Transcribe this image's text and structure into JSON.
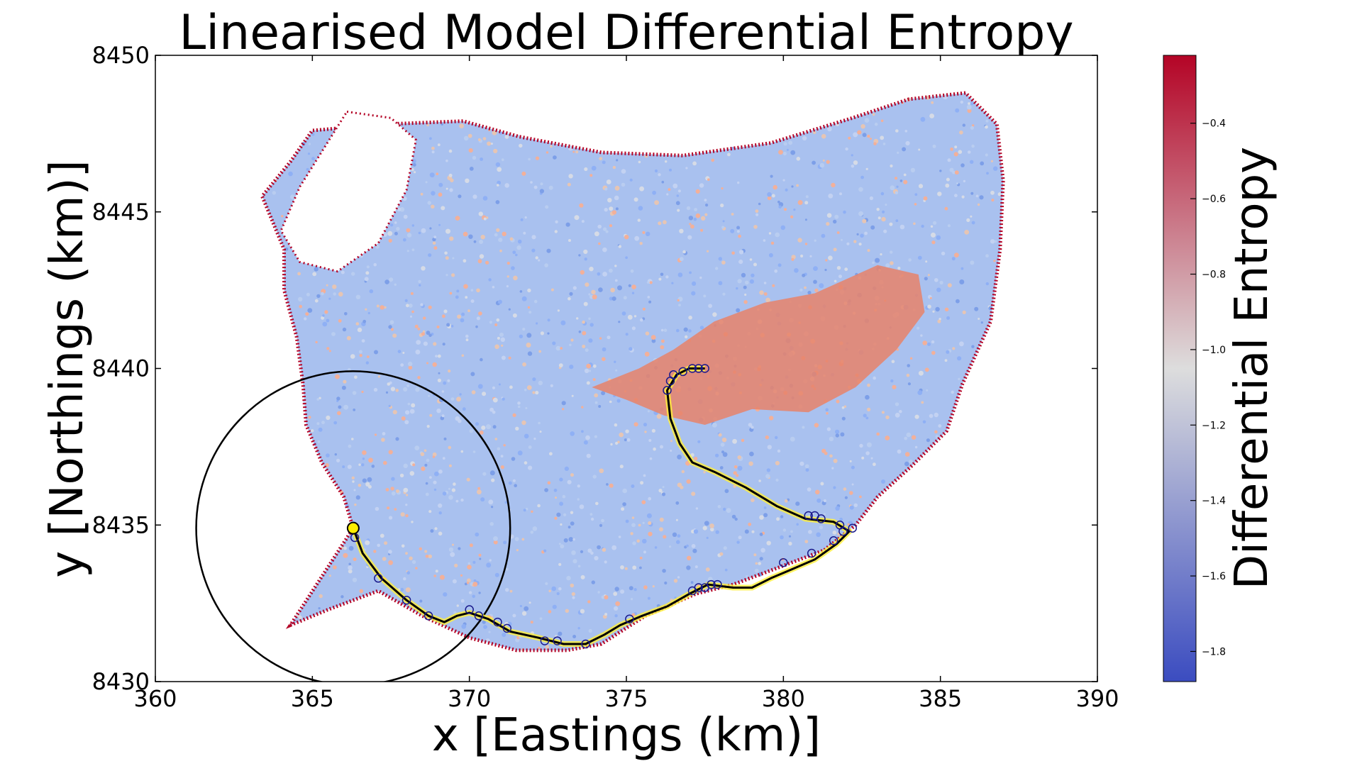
{
  "chart_data": {
    "type": "scatter",
    "title": "Linearised Model Differential Entropy",
    "xlabel": "x [Eastings (km)]",
    "ylabel": "y [Northings (km)]",
    "xlim": [
      360,
      390
    ],
    "ylim": [
      8430,
      8450
    ],
    "x_ticks": [
      "360",
      "365",
      "370",
      "375",
      "380",
      "385",
      "390"
    ],
    "y_ticks": [
      "8430",
      "8435",
      "8440",
      "8445",
      "8450"
    ],
    "grid": false,
    "colorbar": {
      "label": "Differential Entropy",
      "min": -1.88,
      "max": -0.22,
      "ticks": [
        "−0.4",
        "−0.6",
        "−0.8",
        "−1.0",
        "−1.2",
        "−1.4",
        "−1.6",
        "−1.8"
      ],
      "colormap": "coolwarm",
      "low_color": "#3b4cc0",
      "mid_color": "#dddddd",
      "high_color": "#b40426"
    },
    "region_outline": [
      [
        364.3,
        8431.8
      ],
      [
        365.5,
        8432.3
      ],
      [
        367.1,
        8432.9
      ],
      [
        368.5,
        8432.1
      ],
      [
        370.0,
        8431.4
      ],
      [
        371.5,
        8431.0
      ],
      [
        373.1,
        8431.0
      ],
      [
        374.2,
        8431.2
      ],
      [
        375.6,
        8432.1
      ],
      [
        377.2,
        8432.8
      ],
      [
        378.4,
        8433.1
      ],
      [
        380.0,
        8433.7
      ],
      [
        381.3,
        8434.2
      ],
      [
        382.3,
        8435.0
      ],
      [
        383.0,
        8435.9
      ],
      [
        384.1,
        8436.9
      ],
      [
        385.2,
        8438.0
      ],
      [
        385.7,
        8439.5
      ],
      [
        386.6,
        8441.5
      ],
      [
        386.9,
        8443.8
      ],
      [
        387.0,
        8446.0
      ],
      [
        386.8,
        8447.8
      ],
      [
        385.8,
        8448.8
      ],
      [
        384.0,
        8448.6
      ],
      [
        382.2,
        8448.0
      ],
      [
        379.6,
        8447.2
      ],
      [
        376.8,
        8446.8
      ],
      [
        374.2,
        8446.9
      ],
      [
        371.6,
        8447.4
      ],
      [
        369.8,
        8447.9
      ],
      [
        367.3,
        8447.8
      ],
      [
        365.0,
        8447.6
      ],
      [
        364.3,
        8446.6
      ],
      [
        363.4,
        8445.5
      ],
      [
        364.1,
        8443.8
      ],
      [
        364.1,
        8442.5
      ],
      [
        364.5,
        8441.0
      ],
      [
        364.7,
        8439.5
      ],
      [
        364.8,
        8438.2
      ],
      [
        365.3,
        8437.0
      ],
      [
        366.0,
        8435.9
      ],
      [
        366.3,
        8434.9
      ]
    ],
    "unsampled_hole": [
      [
        366.1,
        8448.2
      ],
      [
        367.5,
        8448.0
      ],
      [
        368.3,
        8447.3
      ],
      [
        368.0,
        8445.7
      ],
      [
        367.1,
        8444.0
      ],
      [
        365.8,
        8443.1
      ],
      [
        364.6,
        8443.4
      ],
      [
        364.0,
        8444.4
      ],
      [
        364.6,
        8445.8
      ]
    ],
    "high_entropy_patch": [
      [
        373.9,
        8439.4
      ],
      [
        375.4,
        8440.0
      ],
      [
        376.5,
        8440.6
      ],
      [
        377.8,
        8441.5
      ],
      [
        379.4,
        8442.1
      ],
      [
        381.0,
        8442.4
      ],
      [
        383.0,
        8443.3
      ],
      [
        384.3,
        8443.0
      ],
      [
        384.5,
        8441.8
      ],
      [
        383.6,
        8440.6
      ],
      [
        382.3,
        8439.4
      ],
      [
        380.8,
        8438.6
      ],
      [
        379.0,
        8438.7
      ],
      [
        377.5,
        8438.2
      ],
      [
        376.2,
        8438.5
      ],
      [
        375.0,
        8439.0
      ]
    ],
    "series": [
      {
        "name": "",
        "color": "#000000",
        "points": [
          [
            366.3,
            8434.9
          ],
          [
            366.6,
            8434.1
          ],
          [
            367.2,
            8433.3
          ],
          [
            368.0,
            8432.6
          ],
          [
            368.7,
            8432.1
          ],
          [
            369.2,
            8431.9
          ],
          [
            369.6,
            8432.1
          ],
          [
            370.0,
            8432.2
          ],
          [
            370.6,
            8432.0
          ],
          [
            371.3,
            8431.6
          ],
          [
            372.2,
            8431.4
          ],
          [
            373.0,
            8431.2
          ],
          [
            373.7,
            8431.2
          ],
          [
            374.3,
            8431.5
          ],
          [
            374.8,
            8431.8
          ],
          [
            375.5,
            8432.1
          ],
          [
            376.3,
            8432.4
          ],
          [
            377.0,
            8432.8
          ],
          [
            377.6,
            8433.1
          ],
          [
            378.4,
            8433.0
          ],
          [
            379.0,
            8433.0
          ],
          [
            379.6,
            8433.3
          ],
          [
            380.3,
            8433.6
          ],
          [
            381.0,
            8433.9
          ],
          [
            381.7,
            8434.4
          ],
          [
            382.1,
            8434.8
          ],
          [
            381.6,
            8435.1
          ],
          [
            380.7,
            8435.2
          ],
          [
            379.8,
            8435.6
          ],
          [
            378.8,
            8436.2
          ],
          [
            377.8,
            8436.7
          ],
          [
            377.1,
            8437.0
          ],
          [
            376.7,
            8437.6
          ],
          [
            376.4,
            8438.4
          ],
          [
            376.3,
            8439.3
          ],
          [
            376.6,
            8439.8
          ],
          [
            377.0,
            8440.0
          ],
          [
            377.5,
            8440.0
          ]
        ]
      }
    ],
    "sample_markers": [
      [
        366.35,
        8434.6
      ],
      [
        367.1,
        8433.3
      ],
      [
        368.0,
        8432.6
      ],
      [
        368.7,
        8432.1
      ],
      [
        370.0,
        8432.3
      ],
      [
        370.3,
        8432.1
      ],
      [
        370.9,
        8431.9
      ],
      [
        371.2,
        8431.7
      ],
      [
        372.4,
        8431.3
      ],
      [
        372.8,
        8431.3
      ],
      [
        373.7,
        8431.2
      ],
      [
        375.1,
        8432.0
      ],
      [
        377.1,
        8432.9
      ],
      [
        377.3,
        8433.0
      ],
      [
        377.5,
        8433.0
      ],
      [
        377.7,
        8433.1
      ],
      [
        377.9,
        8433.1
      ],
      [
        380.0,
        8433.8
      ],
      [
        380.9,
        8434.1
      ],
      [
        381.6,
        8434.5
      ],
      [
        381.9,
        8434.8
      ],
      [
        381.8,
        8435.0
      ],
      [
        382.2,
        8434.9
      ],
      [
        381.2,
        8435.2
      ],
      [
        381.0,
        8435.3
      ],
      [
        380.8,
        8435.3
      ],
      [
        376.3,
        8439.3
      ],
      [
        376.4,
        8439.6
      ],
      [
        376.5,
        8439.8
      ],
      [
        376.8,
        8439.9
      ],
      [
        377.1,
        8440.0
      ],
      [
        377.3,
        8440.0
      ],
      [
        377.5,
        8440.0
      ]
    ],
    "current_position": [
      366.3,
      8434.9
    ],
    "sensor_circle": {
      "center": [
        366.3,
        8434.9
      ],
      "radius_km": 5.0
    }
  }
}
